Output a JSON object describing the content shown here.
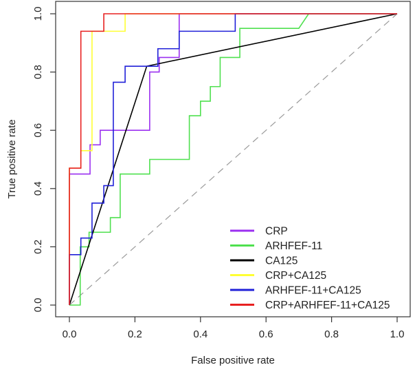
{
  "chart_data": {
    "type": "line",
    "title": "",
    "xlabel": "False positive rate",
    "ylabel": "True positive rate",
    "xlim": [
      0,
      1
    ],
    "ylim": [
      0,
      1
    ],
    "xticks": [
      "0.0",
      "0.2",
      "0.4",
      "0.6",
      "0.8",
      "1.0"
    ],
    "yticks": [
      "0.0",
      "0.2",
      "0.4",
      "0.6",
      "0.8",
      "1.0"
    ],
    "grid": false,
    "legend_position": "bottom-right",
    "reference_line": {
      "name": "chance",
      "points": [
        [
          0,
          0
        ],
        [
          1,
          1
        ]
      ],
      "color": "#9a9a9a",
      "style": "dashed"
    },
    "series": [
      {
        "name": "CRP",
        "color": "#9b30f0",
        "points": [
          [
            0,
            0
          ],
          [
            0,
            0.45
          ],
          [
            0.063,
            0.45
          ],
          [
            0.063,
            0.55
          ],
          [
            0.094,
            0.55
          ],
          [
            0.094,
            0.6
          ],
          [
            0.245,
            0.6
          ],
          [
            0.245,
            0.8
          ],
          [
            0.274,
            0.8
          ],
          [
            0.274,
            0.85
          ],
          [
            0.335,
            0.85
          ],
          [
            0.335,
            1
          ],
          [
            1,
            1
          ]
        ]
      },
      {
        "name": "ARHFEF-11",
        "color": "#4fe04f",
        "points": [
          [
            0,
            0
          ],
          [
            0.033,
            0
          ],
          [
            0.033,
            0.2
          ],
          [
            0.06,
            0.2
          ],
          [
            0.06,
            0.25
          ],
          [
            0.125,
            0.25
          ],
          [
            0.125,
            0.3
          ],
          [
            0.155,
            0.3
          ],
          [
            0.155,
            0.45
          ],
          [
            0.245,
            0.45
          ],
          [
            0.245,
            0.5
          ],
          [
            0.366,
            0.5
          ],
          [
            0.366,
            0.65
          ],
          [
            0.4,
            0.65
          ],
          [
            0.4,
            0.7
          ],
          [
            0.43,
            0.7
          ],
          [
            0.43,
            0.75
          ],
          [
            0.46,
            0.75
          ],
          [
            0.46,
            0.85
          ],
          [
            0.52,
            0.85
          ],
          [
            0.52,
            0.95
          ],
          [
            0.7,
            0.95
          ],
          [
            0.73,
            1
          ],
          [
            1,
            1
          ]
        ]
      },
      {
        "name": "CA125",
        "color": "#000000",
        "points": [
          [
            0,
            0
          ],
          [
            0.236,
            0.82
          ],
          [
            1,
            1
          ]
        ]
      },
      {
        "name": "CRP+CA125",
        "color": "#ffff33",
        "points": [
          [
            0,
            0
          ],
          [
            0,
            0.47
          ],
          [
            0.035,
            0.47
          ],
          [
            0.035,
            0.53
          ],
          [
            0.069,
            0.53
          ],
          [
            0.069,
            0.94
          ],
          [
            0.17,
            0.94
          ],
          [
            0.17,
            1
          ],
          [
            1,
            1
          ]
        ]
      },
      {
        "name": "ARHFEF-11+CA125",
        "color": "#2020d8",
        "points": [
          [
            0,
            0
          ],
          [
            0,
            0.173
          ],
          [
            0.035,
            0.173
          ],
          [
            0.035,
            0.23
          ],
          [
            0.069,
            0.23
          ],
          [
            0.069,
            0.35
          ],
          [
            0.105,
            0.35
          ],
          [
            0.105,
            0.41
          ],
          [
            0.134,
            0.41
          ],
          [
            0.134,
            0.765
          ],
          [
            0.17,
            0.765
          ],
          [
            0.17,
            0.82
          ],
          [
            0.27,
            0.82
          ],
          [
            0.27,
            0.88
          ],
          [
            0.335,
            0.88
          ],
          [
            0.335,
            0.94
          ],
          [
            0.506,
            0.94
          ],
          [
            0.506,
            1
          ],
          [
            1,
            1
          ]
        ]
      },
      {
        "name": "CRP+ARHFEF-11+CA125",
        "color": "#e82020",
        "points": [
          [
            0,
            0
          ],
          [
            0,
            0.47
          ],
          [
            0.035,
            0.47
          ],
          [
            0.035,
            0.94
          ],
          [
            0.105,
            0.94
          ],
          [
            0.105,
            1
          ],
          [
            1,
            1
          ]
        ]
      }
    ]
  }
}
